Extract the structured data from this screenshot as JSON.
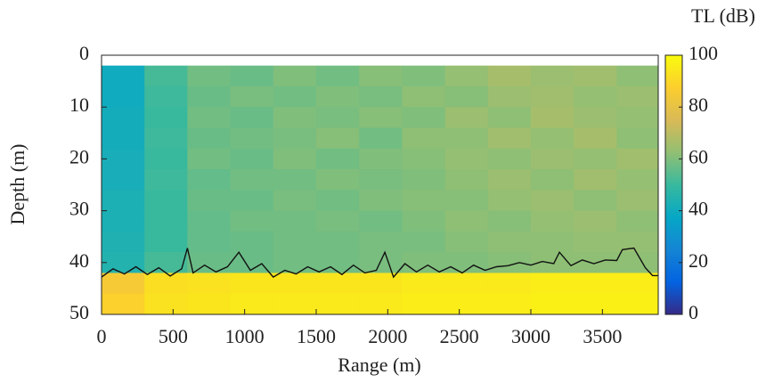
{
  "chart_data": {
    "type": "heatmap",
    "xlabel": "Range (m)",
    "ylabel": "Depth (m)",
    "colorbar_label": "TL (dB)",
    "xlim": [
      0,
      3890
    ],
    "ylim": [
      0,
      50
    ],
    "y_reversed": true,
    "xticks": [
      0,
      500,
      1000,
      1500,
      2000,
      2500,
      3000,
      3500
    ],
    "yticks": [
      0,
      10,
      20,
      30,
      40,
      50
    ],
    "clim": [
      0,
      100
    ],
    "cticks": [
      0,
      20,
      40,
      60,
      80,
      100
    ],
    "colormap": [
      "#352a87",
      "#0363e1",
      "#1485d4",
      "#06a7c6",
      "#38b99e",
      "#92bf73",
      "#d9ba56",
      "#fcce2e",
      "#f9fb0e"
    ],
    "x_edges": [
      0,
      300,
      600,
      900,
      1200,
      1500,
      1800,
      2100,
      2400,
      2700,
      3000,
      3300,
      3600,
      3890
    ],
    "y_edges": [
      2,
      6,
      10,
      14,
      18,
      22,
      26,
      30,
      34,
      38,
      42,
      46,
      50
    ],
    "z": [
      [
        40,
        52,
        58,
        57,
        60,
        58,
        61,
        60,
        63,
        66,
        64,
        65,
        62
      ],
      [
        40,
        51,
        57,
        59,
        58,
        60,
        59,
        62,
        61,
        64,
        65,
        63,
        64
      ],
      [
        41,
        50,
        58,
        57,
        60,
        59,
        61,
        60,
        64,
        62,
        66,
        64,
        63
      ],
      [
        41,
        51,
        57,
        58,
        59,
        61,
        58,
        62,
        62,
        65,
        63,
        66,
        62
      ],
      [
        42,
        50,
        58,
        57,
        60,
        58,
        60,
        61,
        63,
        62,
        64,
        63,
        65
      ],
      [
        42,
        51,
        56,
        58,
        58,
        60,
        59,
        60,
        62,
        64,
        62,
        65,
        63
      ],
      [
        43,
        50,
        57,
        57,
        59,
        58,
        60,
        61,
        61,
        63,
        64,
        62,
        64
      ],
      [
        43,
        50,
        56,
        58,
        58,
        59,
        58,
        60,
        62,
        61,
        63,
        64,
        62
      ],
      [
        44,
        50,
        56,
        57,
        58,
        58,
        59,
        59,
        61,
        62,
        62,
        63,
        63
      ],
      [
        45,
        52,
        57,
        57,
        58,
        58,
        59,
        60,
        60,
        61,
        62,
        62,
        62
      ],
      [
        85,
        92,
        93,
        94,
        94,
        94,
        94,
        95,
        95,
        95,
        96,
        96,
        96
      ],
      [
        88,
        93,
        94,
        95,
        95,
        95,
        95,
        96,
        96,
        96,
        97,
        97,
        97
      ]
    ],
    "line": {
      "color": "#111111",
      "x": [
        0,
        80,
        160,
        240,
        320,
        400,
        480,
        560,
        600,
        640,
        720,
        800,
        880,
        960,
        1040,
        1120,
        1200,
        1280,
        1360,
        1440,
        1520,
        1600,
        1680,
        1760,
        1840,
        1920,
        1980,
        2040,
        2120,
        2200,
        2280,
        2360,
        2440,
        2520,
        2600,
        2680,
        2760,
        2840,
        2920,
        3000,
        3080,
        3160,
        3200,
        3280,
        3360,
        3440,
        3520,
        3600,
        3640,
        3720,
        3800,
        3850,
        3890
      ],
      "y": [
        42.8,
        41.2,
        42.2,
        40.8,
        42.3,
        41.0,
        42.6,
        41.2,
        37.2,
        42.0,
        40.5,
        41.8,
        40.8,
        38.0,
        41.5,
        40.2,
        42.8,
        41.5,
        42.2,
        40.8,
        41.8,
        40.8,
        42.3,
        40.5,
        42.0,
        41.5,
        38.0,
        42.8,
        40.2,
        41.8,
        40.5,
        41.8,
        40.8,
        42.0,
        40.5,
        41.5,
        40.8,
        40.6,
        40.0,
        40.5,
        39.8,
        40.2,
        38.0,
        40.6,
        39.5,
        40.2,
        39.5,
        39.6,
        37.5,
        37.2,
        41.0,
        42.5,
        42.5
      ]
    }
  }
}
